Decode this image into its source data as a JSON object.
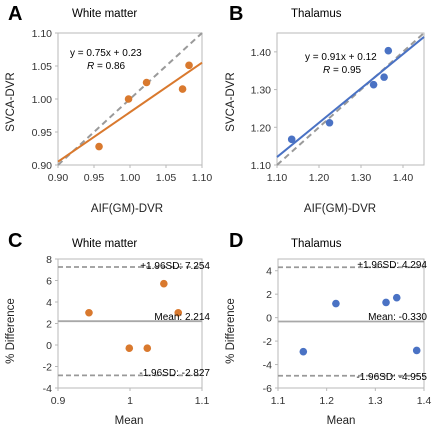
{
  "colors": {
    "orange": "#d9792e",
    "blue": "#4a72c4",
    "identity": "#9a9a9a",
    "frame": "#b8b8b8",
    "limits": "#999999",
    "mean_line": "#a8a8a8"
  },
  "chart_data": [
    {
      "panel": "A",
      "type": "scatter",
      "title": "White matter",
      "xlabel": "AIF(GM)-DVR",
      "ylabel": "SVCA-DVR",
      "xlim": [
        0.9,
        1.1
      ],
      "ylim": [
        0.9,
        1.1
      ],
      "xticks": [
        "0.90",
        "0.95",
        "1.00",
        "1.05",
        "1.10"
      ],
      "yticks": [
        "0.90",
        "0.95",
        "1.00",
        "1.05",
        "1.10"
      ],
      "grid": false,
      "identity_line": true,
      "color": "orange",
      "x": [
        0.957,
        0.998,
        1.023,
        1.073,
        1.082
      ],
      "y": [
        0.928,
        1.0,
        1.025,
        1.015,
        1.051
      ],
      "fit": {
        "slope": 0.75,
        "intercept": 0.23,
        "equation": "y = 0.75x + 0.23",
        "r_label": "R",
        "r_value": " = 0.86"
      }
    },
    {
      "panel": "B",
      "type": "scatter",
      "title": "Thalamus",
      "xlabel": "AIF(GM)-DVR",
      "ylabel": "SVCA-DVR",
      "xlim": [
        1.1,
        1.45
      ],
      "ylim": [
        1.1,
        1.45
      ],
      "xticks": [
        "1.10",
        "1.20",
        "1.30",
        "1.40"
      ],
      "yticks": [
        "1.10",
        "1.20",
        "1.30",
        "1.40"
      ],
      "grid": false,
      "identity_line": true,
      "color": "blue",
      "x": [
        1.135,
        1.225,
        1.33,
        1.355,
        1.365
      ],
      "y": [
        1.168,
        1.212,
        1.313,
        1.333,
        1.403
      ],
      "fit": {
        "slope": 0.91,
        "intercept": 0.12,
        "equation": "y = 0.91x + 0.12",
        "r_label": "R",
        "r_value": " = 0.95"
      }
    },
    {
      "panel": "C",
      "type": "scatter",
      "title": "White matter",
      "xlabel": "Mean",
      "ylabel": "% Difference",
      "xlim": [
        0.9,
        1.1
      ],
      "ylim": [
        -4,
        8
      ],
      "xticks": [
        "0.9",
        "1",
        "1.1"
      ],
      "yticks": [
        "-4",
        "-2",
        "0",
        "2",
        "4",
        "6",
        "8"
      ],
      "grid": false,
      "color": "orange",
      "x": [
        0.943,
        0.999,
        1.024,
        1.047,
        1.067
      ],
      "y": [
        3.0,
        -0.3,
        -0.3,
        5.7,
        3.0
      ],
      "mean": 2.214,
      "upper": 7.254,
      "lower": -2.827,
      "mean_label": "Mean: 2.214",
      "upper_label": "+1.96SD: 7.254",
      "lower_label": "-1.96SD: -2.827"
    },
    {
      "panel": "D",
      "type": "scatter",
      "title": "Thalamus",
      "xlabel": "Mean",
      "ylabel": "% Difference",
      "xlim": [
        1.1,
        1.4
      ],
      "ylim": [
        -6,
        5
      ],
      "xticks": [
        "1.1",
        "1.2",
        "1.3",
        "1.4"
      ],
      "yticks": [
        "-6",
        "-4",
        "-2",
        "0",
        "2",
        "4"
      ],
      "grid": false,
      "color": "blue",
      "x": [
        1.152,
        1.219,
        1.322,
        1.344,
        1.385
      ],
      "y": [
        -2.9,
        1.2,
        1.3,
        1.7,
        -2.8
      ],
      "mean": -0.33,
      "upper": 4.294,
      "lower": -4.955,
      "mean_label": "Mean: -0.330",
      "upper_label": "+1.96SD: 4.294",
      "lower_label": "-1.96SD: -4.955"
    }
  ]
}
